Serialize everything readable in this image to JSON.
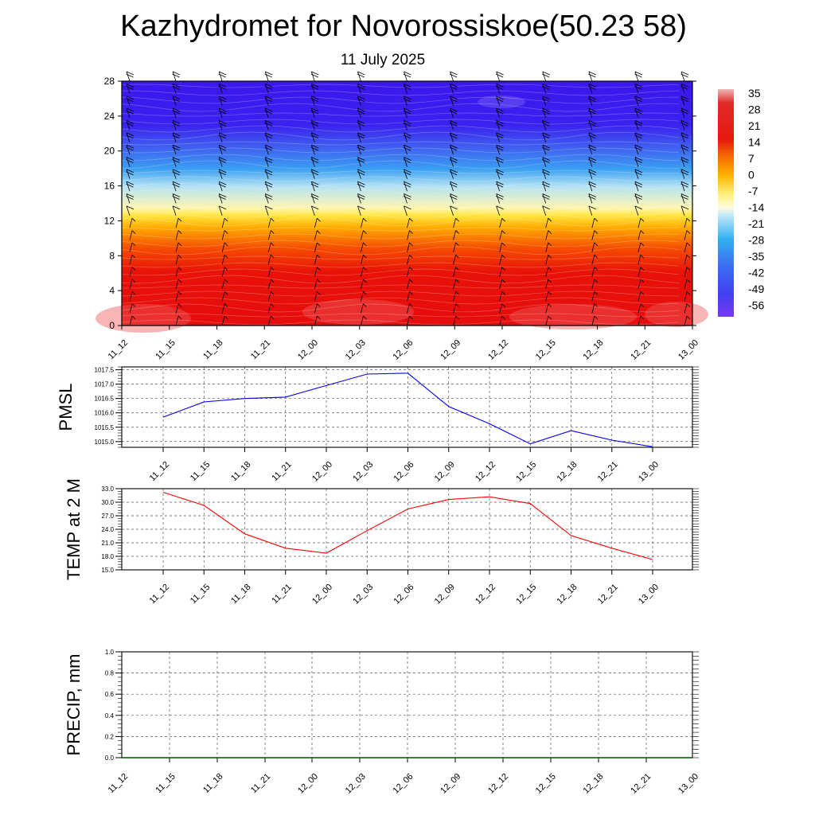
{
  "title": "Kazhydromet for Novorossiskoe(50.23 58)",
  "subtitle": "11 July 2025",
  "chart_data": [
    {
      "type": "heatmap",
      "name": "temperature-height-section",
      "x_ticks": [
        "11_12",
        "11_15",
        "11_18",
        "11_21",
        "12_00",
        "12_03",
        "12_06",
        "12_09",
        "12_12",
        "12_15",
        "12_18",
        "12_21",
        "13_00"
      ],
      "y_ticks": [
        "0",
        "4",
        "8",
        "12",
        "16",
        "20",
        "24",
        "28"
      ],
      "ylim": [
        0,
        28
      ],
      "colorbar_labels": [
        "35",
        "28",
        "21",
        "14",
        "7",
        "0",
        "-7",
        "-14",
        "-21",
        "-28",
        "-35",
        "-42",
        "-49",
        "-56"
      ],
      "colorbar_range": [
        -60,
        38
      ],
      "colors": {
        "bg_red": "#e60d0d",
        "deep_blue": "#3a14ee",
        "light_yellow": "#fff2a0",
        "light_blue": "#a6d8f7"
      },
      "wind_barbs": true
    },
    {
      "type": "line",
      "ylabel": "PMSL",
      "categories": [
        "11_12",
        "11_15",
        "11_18",
        "11_21",
        "12_00",
        "12_03",
        "12_06",
        "12_09",
        "12_12",
        "12_15",
        "12_18",
        "12_21",
        "13_00"
      ],
      "values": [
        1015.85,
        1016.38,
        1016.5,
        1016.55,
        1016.95,
        1017.35,
        1017.38,
        1016.22,
        1015.62,
        1014.92,
        1015.38,
        1015.05,
        1014.82
      ],
      "ylim": [
        1014.8,
        1017.6
      ],
      "y_ticks": [
        "1015.0",
        "1015.5",
        "1016.0",
        "1016.5",
        "1017.0",
        "1017.5"
      ],
      "color": "#0000ff",
      "grid": true
    },
    {
      "type": "line",
      "ylabel": "TEMP at 2 M",
      "categories": [
        "11_12",
        "11_15",
        "11_18",
        "11_21",
        "12_00",
        "12_03",
        "12_06",
        "12_09",
        "12_12",
        "12_15",
        "12_18",
        "12_21",
        "13_00"
      ],
      "values": [
        32.2,
        29.3,
        23.0,
        19.8,
        18.7,
        23.7,
        28.5,
        30.6,
        31.2,
        29.7,
        22.6,
        19.8,
        17.3
      ],
      "ylim": [
        15.0,
        33.0
      ],
      "y_ticks": [
        "15.0",
        "18.0",
        "21.0",
        "24.0",
        "27.0",
        "30.0",
        "33.0"
      ],
      "color": "#ff0000",
      "grid": true
    },
    {
      "type": "bar",
      "ylabel": "PRECIP, mm",
      "categories": [
        "11_12",
        "11_15",
        "11_18",
        "11_21",
        "12_00",
        "12_03",
        "12_06",
        "12_09",
        "12_12",
        "12_15",
        "12_18",
        "12_21",
        "13_00"
      ],
      "values": [
        0,
        0,
        0,
        0,
        0,
        0,
        0,
        0,
        0,
        0,
        0,
        0,
        0
      ],
      "ylim": [
        0.0,
        1.0
      ],
      "y_ticks": [
        "0.0",
        "0.2",
        "0.4",
        "0.6",
        "0.8",
        "1.0"
      ],
      "color": "#006400",
      "grid": true
    }
  ]
}
